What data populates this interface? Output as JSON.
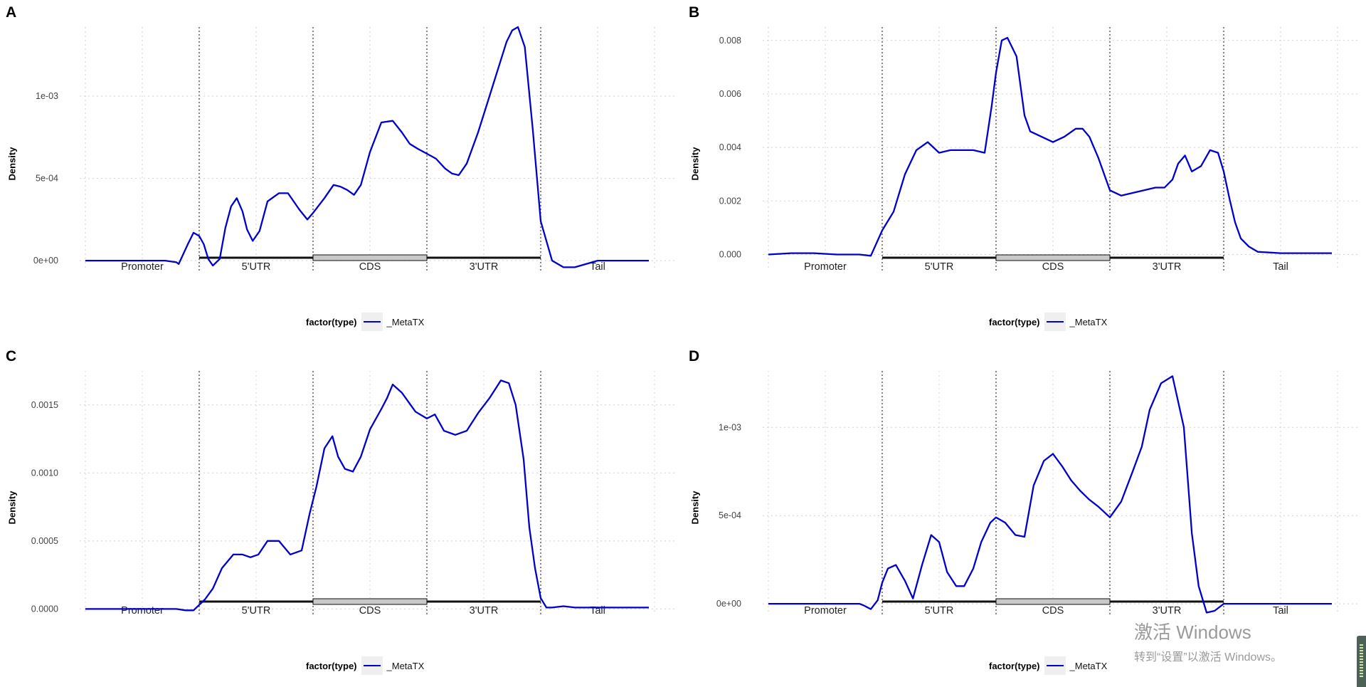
{
  "panels": [
    {
      "label": "A",
      "ylabel": "Density",
      "yticks": [
        "1e-03",
        "5e-04",
        "0e+00"
      ]
    },
    {
      "label": "B",
      "ylabel": "Density",
      "yticks": [
        "0.008",
        "0.006",
        "0.004",
        "0.002",
        "0.000"
      ]
    },
    {
      "label": "C",
      "ylabel": "Density",
      "yticks": [
        "0.0015",
        "0.0010",
        "0.0005",
        "0.0000"
      ]
    },
    {
      "label": "D",
      "ylabel": "Density",
      "yticks": [
        "1e-03",
        "5e-04",
        "0e+00"
      ]
    }
  ],
  "regions": [
    "Promoter",
    "5'UTR",
    "CDS",
    "3'UTR",
    "Tail"
  ],
  "legend": {
    "title": "factor(type)",
    "name": "_MetaTX"
  },
  "colors": {
    "line": "#0000cc",
    "grid": "#d0d0d0",
    "cds_box": "#c8c8c8"
  },
  "watermark": {
    "line1": "激活 Windows",
    "line2": "转到“设置”以激活 Windows。"
  },
  "chart_data": [
    {
      "type": "line",
      "panel": "A",
      "ylabel": "Density",
      "ylim": [
        -6e-05,
        0.00142
      ],
      "yticks": [
        0,
        0.0005,
        0.001
      ],
      "x": [
        0,
        0.1,
        0.2,
        0.3,
        0.4,
        0.45,
        0.5,
        0.6,
        0.7,
        0.8,
        0.82,
        0.9,
        0.95,
        1.0,
        1.04,
        1.08,
        1.12,
        1.18,
        1.23,
        1.28,
        1.33,
        1.38,
        1.42,
        1.47,
        1.53,
        1.6,
        1.7,
        1.78,
        1.82,
        1.88,
        1.95,
        2.0,
        2.1,
        2.18,
        2.24,
        2.3,
        2.36,
        2.42,
        2.5,
        2.6,
        2.7,
        2.78,
        2.85,
        2.92,
        3.0,
        3.08,
        3.16,
        3.22,
        3.28,
        3.35,
        3.45,
        3.55,
        3.65,
        3.7,
        3.75,
        3.8,
        3.86,
        3.93,
        4.0,
        4.1,
        4.2,
        4.3,
        4.5,
        4.7,
        4.8,
        4.95
      ],
      "y": [
        0,
        0,
        0,
        0,
        0,
        0,
        0,
        0,
        0,
        -1e-05,
        -2e-05,
        0.0001,
        0.00017,
        0.00015,
        0.0001,
        1e-05,
        -3e-05,
        1e-05,
        0.0002,
        0.00033,
        0.00038,
        0.0003,
        0.00019,
        0.00012,
        0.00018,
        0.00036,
        0.00041,
        0.00041,
        0.00037,
        0.00031,
        0.00025,
        0.00029,
        0.00038,
        0.00046,
        0.00045,
        0.00043,
        0.0004,
        0.00046,
        0.00066,
        0.00084,
        0.00085,
        0.00078,
        0.00071,
        0.00068,
        0.00065,
        0.00062,
        0.00056,
        0.00053,
        0.00052,
        0.00059,
        0.00078,
        0.001,
        0.00122,
        0.00133,
        0.0014,
        0.00142,
        0.0013,
        0.0008,
        0.00024,
        0.0,
        -4e-05,
        -4e-05,
        0,
        0,
        0,
        0
      ]
    },
    {
      "type": "line",
      "panel": "B",
      "ylabel": "Density",
      "ylim": [
        -0.0006,
        0.0085
      ],
      "yticks": [
        0,
        0.002,
        0.004,
        0.006,
        0.008
      ],
      "x": [
        0,
        0.2,
        0.4,
        0.6,
        0.8,
        0.9,
        1.0,
        1.1,
        1.2,
        1.3,
        1.4,
        1.5,
        1.6,
        1.7,
        1.8,
        1.9,
        1.96,
        2.0,
        2.05,
        2.1,
        2.18,
        2.25,
        2.3,
        2.4,
        2.5,
        2.6,
        2.7,
        2.76,
        2.82,
        2.9,
        3.0,
        3.1,
        3.2,
        3.3,
        3.4,
        3.48,
        3.55,
        3.6,
        3.66,
        3.72,
        3.8,
        3.88,
        3.95,
        4.0,
        4.05,
        4.1,
        4.15,
        4.22,
        4.3,
        4.5,
        4.7,
        4.95
      ],
      "y": [
        0,
        5e-05,
        5e-05,
        0,
        0,
        -5e-05,
        0.0009,
        0.0016,
        0.003,
        0.0039,
        0.0042,
        0.0038,
        0.0039,
        0.0039,
        0.0039,
        0.0038,
        0.0055,
        0.0068,
        0.008,
        0.0081,
        0.0074,
        0.0052,
        0.0046,
        0.0044,
        0.0042,
        0.0044,
        0.0047,
        0.0047,
        0.0044,
        0.0036,
        0.0024,
        0.0022,
        0.0023,
        0.0024,
        0.0025,
        0.0025,
        0.0028,
        0.0034,
        0.0037,
        0.0031,
        0.0033,
        0.0039,
        0.0038,
        0.0031,
        0.0021,
        0.0012,
        0.0006,
        0.0003,
        0.0001,
        5e-05,
        5e-05,
        5e-05
      ]
    },
    {
      "type": "line",
      "panel": "C",
      "ylabel": "Density",
      "ylim": [
        -4e-05,
        0.00175
      ],
      "yticks": [
        0,
        0.0005,
        0.001,
        0.0015
      ],
      "x": [
        0,
        0.2,
        0.4,
        0.6,
        0.8,
        0.88,
        0.95,
        1.05,
        1.12,
        1.2,
        1.3,
        1.38,
        1.45,
        1.52,
        1.6,
        1.7,
        1.8,
        1.9,
        1.97,
        2.03,
        2.1,
        2.17,
        2.22,
        2.28,
        2.35,
        2.42,
        2.5,
        2.6,
        2.65,
        2.7,
        2.78,
        2.9,
        3.0,
        3.07,
        3.15,
        3.25,
        3.35,
        3.45,
        3.55,
        3.65,
        3.72,
        3.78,
        3.85,
        3.9,
        3.95,
        4.0,
        4.05,
        4.1,
        4.2,
        4.3,
        4.4,
        4.6,
        4.95
      ],
      "y": [
        0,
        0,
        0,
        0,
        0,
        -1e-05,
        -1e-05,
        7e-05,
        0.00015,
        0.0003,
        0.0004,
        0.0004,
        0.00038,
        0.0004,
        0.0005,
        0.0005,
        0.0004,
        0.00043,
        0.0007,
        0.0009,
        0.00118,
        0.00127,
        0.00112,
        0.00103,
        0.00101,
        0.00112,
        0.00132,
        0.00147,
        0.00155,
        0.00165,
        0.00159,
        0.00145,
        0.0014,
        0.00143,
        0.00131,
        0.00128,
        0.00131,
        0.00144,
        0.00155,
        0.00168,
        0.00166,
        0.0015,
        0.0011,
        0.0006,
        0.0003,
        8e-05,
        1e-05,
        1e-05,
        2e-05,
        1e-05,
        1e-05,
        1e-05,
        1e-05
      ]
    },
    {
      "type": "line",
      "panel": "D",
      "ylabel": "Density",
      "ylim": [
        -6e-05,
        0.00132
      ],
      "yticks": [
        0,
        0.0005,
        0.001
      ],
      "x": [
        0,
        0.2,
        0.4,
        0.6,
        0.8,
        0.84,
        0.9,
        0.96,
        1.0,
        1.05,
        1.12,
        1.2,
        1.27,
        1.35,
        1.43,
        1.5,
        1.57,
        1.65,
        1.72,
        1.8,
        1.87,
        1.95,
        2.0,
        2.08,
        2.17,
        2.25,
        2.33,
        2.42,
        2.5,
        2.58,
        2.66,
        2.74,
        2.82,
        2.9,
        3.0,
        3.1,
        3.2,
        3.28,
        3.35,
        3.45,
        3.55,
        3.65,
        3.72,
        3.78,
        3.85,
        3.92,
        4.0,
        4.06,
        4.15,
        4.25,
        4.5,
        4.95
      ],
      "y": [
        0,
        0,
        0,
        0,
        0,
        -1e-05,
        -3e-05,
        2e-05,
        0.00012,
        0.0002,
        0.00022,
        0.00013,
        3e-05,
        0.00022,
        0.00039,
        0.00035,
        0.00018,
        0.0001,
        0.0001,
        0.0002,
        0.00035,
        0.00046,
        0.00049,
        0.00046,
        0.00039,
        0.00038,
        0.00067,
        0.00081,
        0.00085,
        0.00078,
        0.0007,
        0.00064,
        0.00059,
        0.00055,
        0.00049,
        0.00058,
        0.00075,
        0.00089,
        0.0011,
        0.00125,
        0.00129,
        0.001,
        0.0004,
        0.0001,
        -5e-05,
        -4e-05,
        0.0,
        0.0,
        0,
        0,
        0,
        0
      ]
    }
  ]
}
